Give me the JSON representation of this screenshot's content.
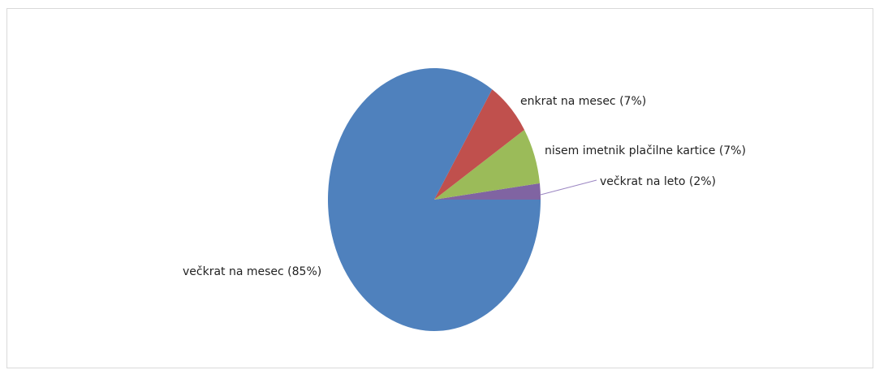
{
  "chart_data": {
    "type": "pie",
    "title": "",
    "legend": "none",
    "slices": [
      {
        "label": "večkrat na mesec",
        "value": 85,
        "display": "večkrat na mesec (85%)",
        "color": "#4f81bd"
      },
      {
        "label": "enkrat na mesec",
        "value": 7,
        "display": "enkrat na mesec (7%)",
        "color": "#c0504d"
      },
      {
        "label": "nisem imetnik plačilne kartice",
        "value": 7,
        "display": "nisem imetnik plačilne kartice (7%)",
        "color": "#9bbb59"
      },
      {
        "label": "večkrat na leto",
        "value": 2,
        "display": "večkrat na leto (2%)",
        "color": "#8064a2"
      }
    ]
  }
}
